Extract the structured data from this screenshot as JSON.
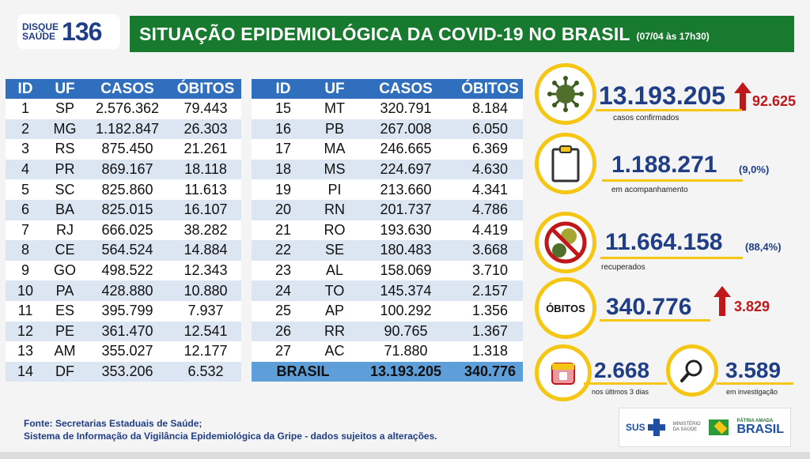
{
  "header": {
    "logo_line1": "DISQUE",
    "logo_line2": "SAÚDE",
    "logo_number": "136",
    "title": "SITUAÇÃO EPIDEMIOLÓGICA DA COVID-19 NO BRASIL",
    "date": "(07/04 às 17h30)"
  },
  "table": {
    "columns": [
      "ID",
      "UF",
      "CASOS",
      "ÓBITOS"
    ],
    "left_rows": [
      [
        "1",
        "SP",
        "2.576.362",
        "79.443"
      ],
      [
        "2",
        "MG",
        "1.182.847",
        "26.303"
      ],
      [
        "3",
        "RS",
        "875.450",
        "21.261"
      ],
      [
        "4",
        "PR",
        "869.167",
        "18.118"
      ],
      [
        "5",
        "SC",
        "825.860",
        "11.613"
      ],
      [
        "6",
        "BA",
        "825.015",
        "16.107"
      ],
      [
        "7",
        "RJ",
        "666.025",
        "38.282"
      ],
      [
        "8",
        "CE",
        "564.524",
        "14.884"
      ],
      [
        "9",
        "GO",
        "498.522",
        "12.343"
      ],
      [
        "10",
        "PA",
        "428.880",
        "10.880"
      ],
      [
        "11",
        "ES",
        "395.799",
        "7.937"
      ],
      [
        "12",
        "PE",
        "361.470",
        "12.541"
      ],
      [
        "13",
        "AM",
        "355.027",
        "12.177"
      ],
      [
        "14",
        "DF",
        "353.206",
        "6.532"
      ]
    ],
    "right_rows": [
      [
        "15",
        "MT",
        "320.791",
        "8.184"
      ],
      [
        "16",
        "PB",
        "267.008",
        "6.050"
      ],
      [
        "17",
        "MA",
        "246.665",
        "6.369"
      ],
      [
        "18",
        "MS",
        "224.697",
        "4.630"
      ],
      [
        "19",
        "PI",
        "213.660",
        "4.341"
      ],
      [
        "20",
        "RN",
        "201.737",
        "4.786"
      ],
      [
        "21",
        "RO",
        "193.630",
        "4.419"
      ],
      [
        "22",
        "SE",
        "180.483",
        "3.668"
      ],
      [
        "23",
        "AL",
        "158.069",
        "3.710"
      ],
      [
        "24",
        "TO",
        "145.374",
        "2.157"
      ],
      [
        "25",
        "AP",
        "100.292",
        "1.356"
      ],
      [
        "26",
        "RR",
        "90.765",
        "1.367"
      ],
      [
        "27",
        "AC",
        "71.880",
        "1.318"
      ]
    ],
    "total": {
      "label": "BRASIL",
      "casos": "13.193.205",
      "obitos": "340.776"
    }
  },
  "stats": {
    "confirmed": {
      "value": "13.193.205",
      "delta": "92.625",
      "caption": "casos confirmados",
      "icon": "virus-icon"
    },
    "monitoring": {
      "value": "1.188.271",
      "pct": "(9,0%)",
      "caption": "em acompanhamento",
      "icon": "clipboard-icon"
    },
    "recovered": {
      "value": "11.664.158",
      "pct": "(88,4%)",
      "caption": "recuperados",
      "icon": "no-virus-icon"
    },
    "deaths": {
      "label": "ÓBITOS",
      "value": "340.776",
      "delta": "3.829"
    },
    "last3days": {
      "value": "2.668",
      "caption": "nos últimos 3 dias",
      "icon": "calendar-icon"
    },
    "investigation": {
      "value": "3.589",
      "caption": "em investigação",
      "icon": "magnifier-icon"
    }
  },
  "footer": {
    "line1": "Fonte: Secretarias Estaduais de Saúde;",
    "line2": "Sistema de Informação da Vigilância Epidemiológica da Gripe - dados sujeitos a alterações.",
    "sus": "SUS",
    "ministry": "MINISTÉRIO DA SAÚDE",
    "brasil_tag": "PÁTRIA AMADA",
    "brasil": "BRASIL"
  },
  "colors": {
    "title_green": "#177a2f",
    "header_blue": "#2f6fbe",
    "row_alt": "#dce6f2",
    "number_blue": "#1f3e86",
    "accent_yellow": "#f5c613",
    "alert_red": "#c0171b"
  }
}
